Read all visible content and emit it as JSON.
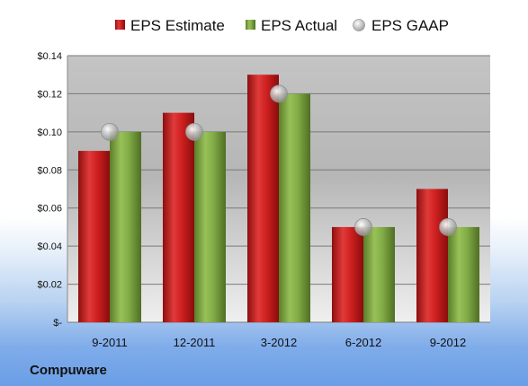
{
  "company": "Compuware",
  "chart_data": {
    "type": "bar",
    "title": "",
    "xlabel": "",
    "ylabel": "",
    "categories": [
      "9-2011",
      "12-2011",
      "3-2012",
      "6-2012",
      "9-2012"
    ],
    "series": [
      {
        "name": "EPS Estimate",
        "kind": "bar",
        "color": "#cc1f1f",
        "values": [
          0.09,
          0.11,
          0.13,
          0.05,
          0.07
        ]
      },
      {
        "name": "EPS Actual",
        "kind": "bar",
        "color": "#7fa640",
        "values": [
          0.1,
          0.1,
          0.12,
          0.05,
          0.05
        ]
      },
      {
        "name": "EPS GAAP",
        "kind": "marker",
        "color": "#b0b0b0",
        "values": [
          0.1,
          0.1,
          0.12,
          0.05,
          0.05
        ]
      }
    ],
    "ylim": [
      0,
      0.14
    ],
    "yticks": [
      0,
      0.02,
      0.04,
      0.06,
      0.08,
      0.1,
      0.12,
      0.14
    ],
    "ytick_labels": [
      "$-",
      "$0.02",
      "$0.04",
      "$0.06",
      "$0.08",
      "$0.10",
      "$0.12",
      "$0.14"
    ],
    "grid": true,
    "legend_position": "top"
  }
}
